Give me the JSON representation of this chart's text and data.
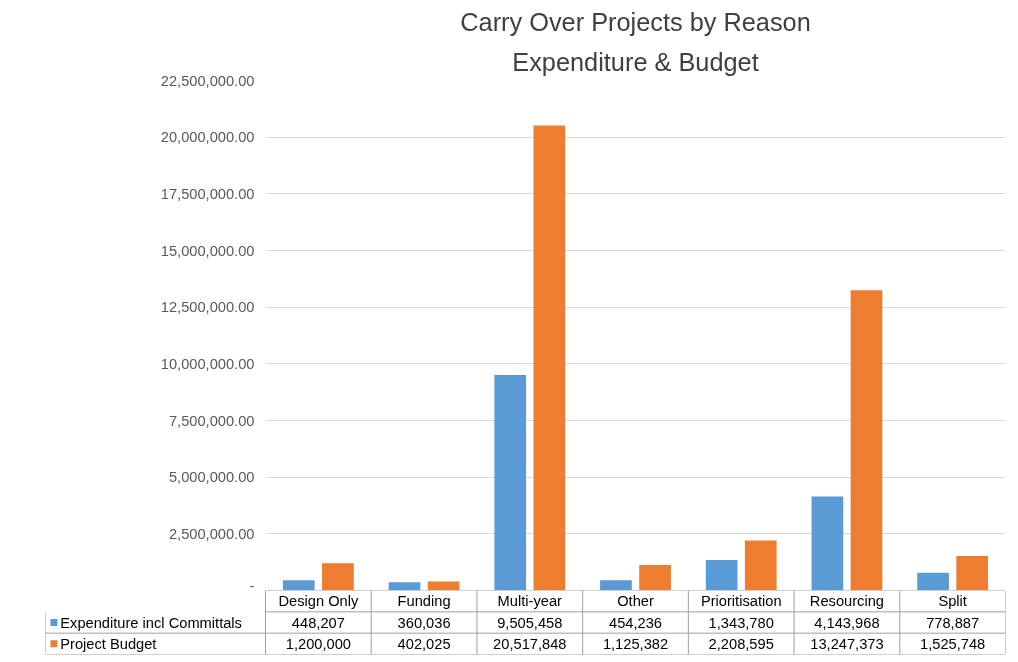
{
  "chart_data": {
    "type": "bar",
    "title": "Carry Over Projects by Reason",
    "subtitle": "Expenditure & Budget",
    "categories": [
      "Design Only",
      "Funding",
      "Multi-year",
      "Other",
      "Prioritisation",
      "Resourcing",
      "Split"
    ],
    "series": [
      {
        "name": "Expenditure incl Committals",
        "color": "#5b9bd5",
        "values": [
          448207,
          360036,
          9505458,
          454236,
          1343780,
          4143968,
          778887
        ],
        "value_labels": [
          "448,207",
          "360,036",
          "9,505,458",
          "454,236",
          "1,343,780",
          "4,143,968",
          "778,887"
        ]
      },
      {
        "name": "Project Budget",
        "color": "#ed7d31",
        "values": [
          1200000,
          402025,
          20517848,
          1125382,
          2208595,
          13247373,
          1525748
        ],
        "value_labels": [
          "1,200,000",
          "402,025",
          "20,517,848",
          "1,125,382",
          "2,208,595",
          "13,247,373",
          "1,525,748"
        ]
      }
    ],
    "ylim": [
      0,
      22500000
    ],
    "yticks": [
      {
        "value": 0,
        "label": "-"
      },
      {
        "value": 2500000,
        "label": "2,500,000.00"
      },
      {
        "value": 5000000,
        "label": "5,000,000.00"
      },
      {
        "value": 7500000,
        "label": "7,500,000.00"
      },
      {
        "value": 10000000,
        "label": "10,000,000.00"
      },
      {
        "value": 12500000,
        "label": "12,500,000.00"
      },
      {
        "value": 15000000,
        "label": "15,000,000.00"
      },
      {
        "value": 17500000,
        "label": "17,500,000.00"
      },
      {
        "value": 20000000,
        "label": "20,000,000.00"
      },
      {
        "value": 22500000,
        "label": "22,500,000.00"
      }
    ],
    "grid": "y",
    "legend": "bottom left"
  }
}
